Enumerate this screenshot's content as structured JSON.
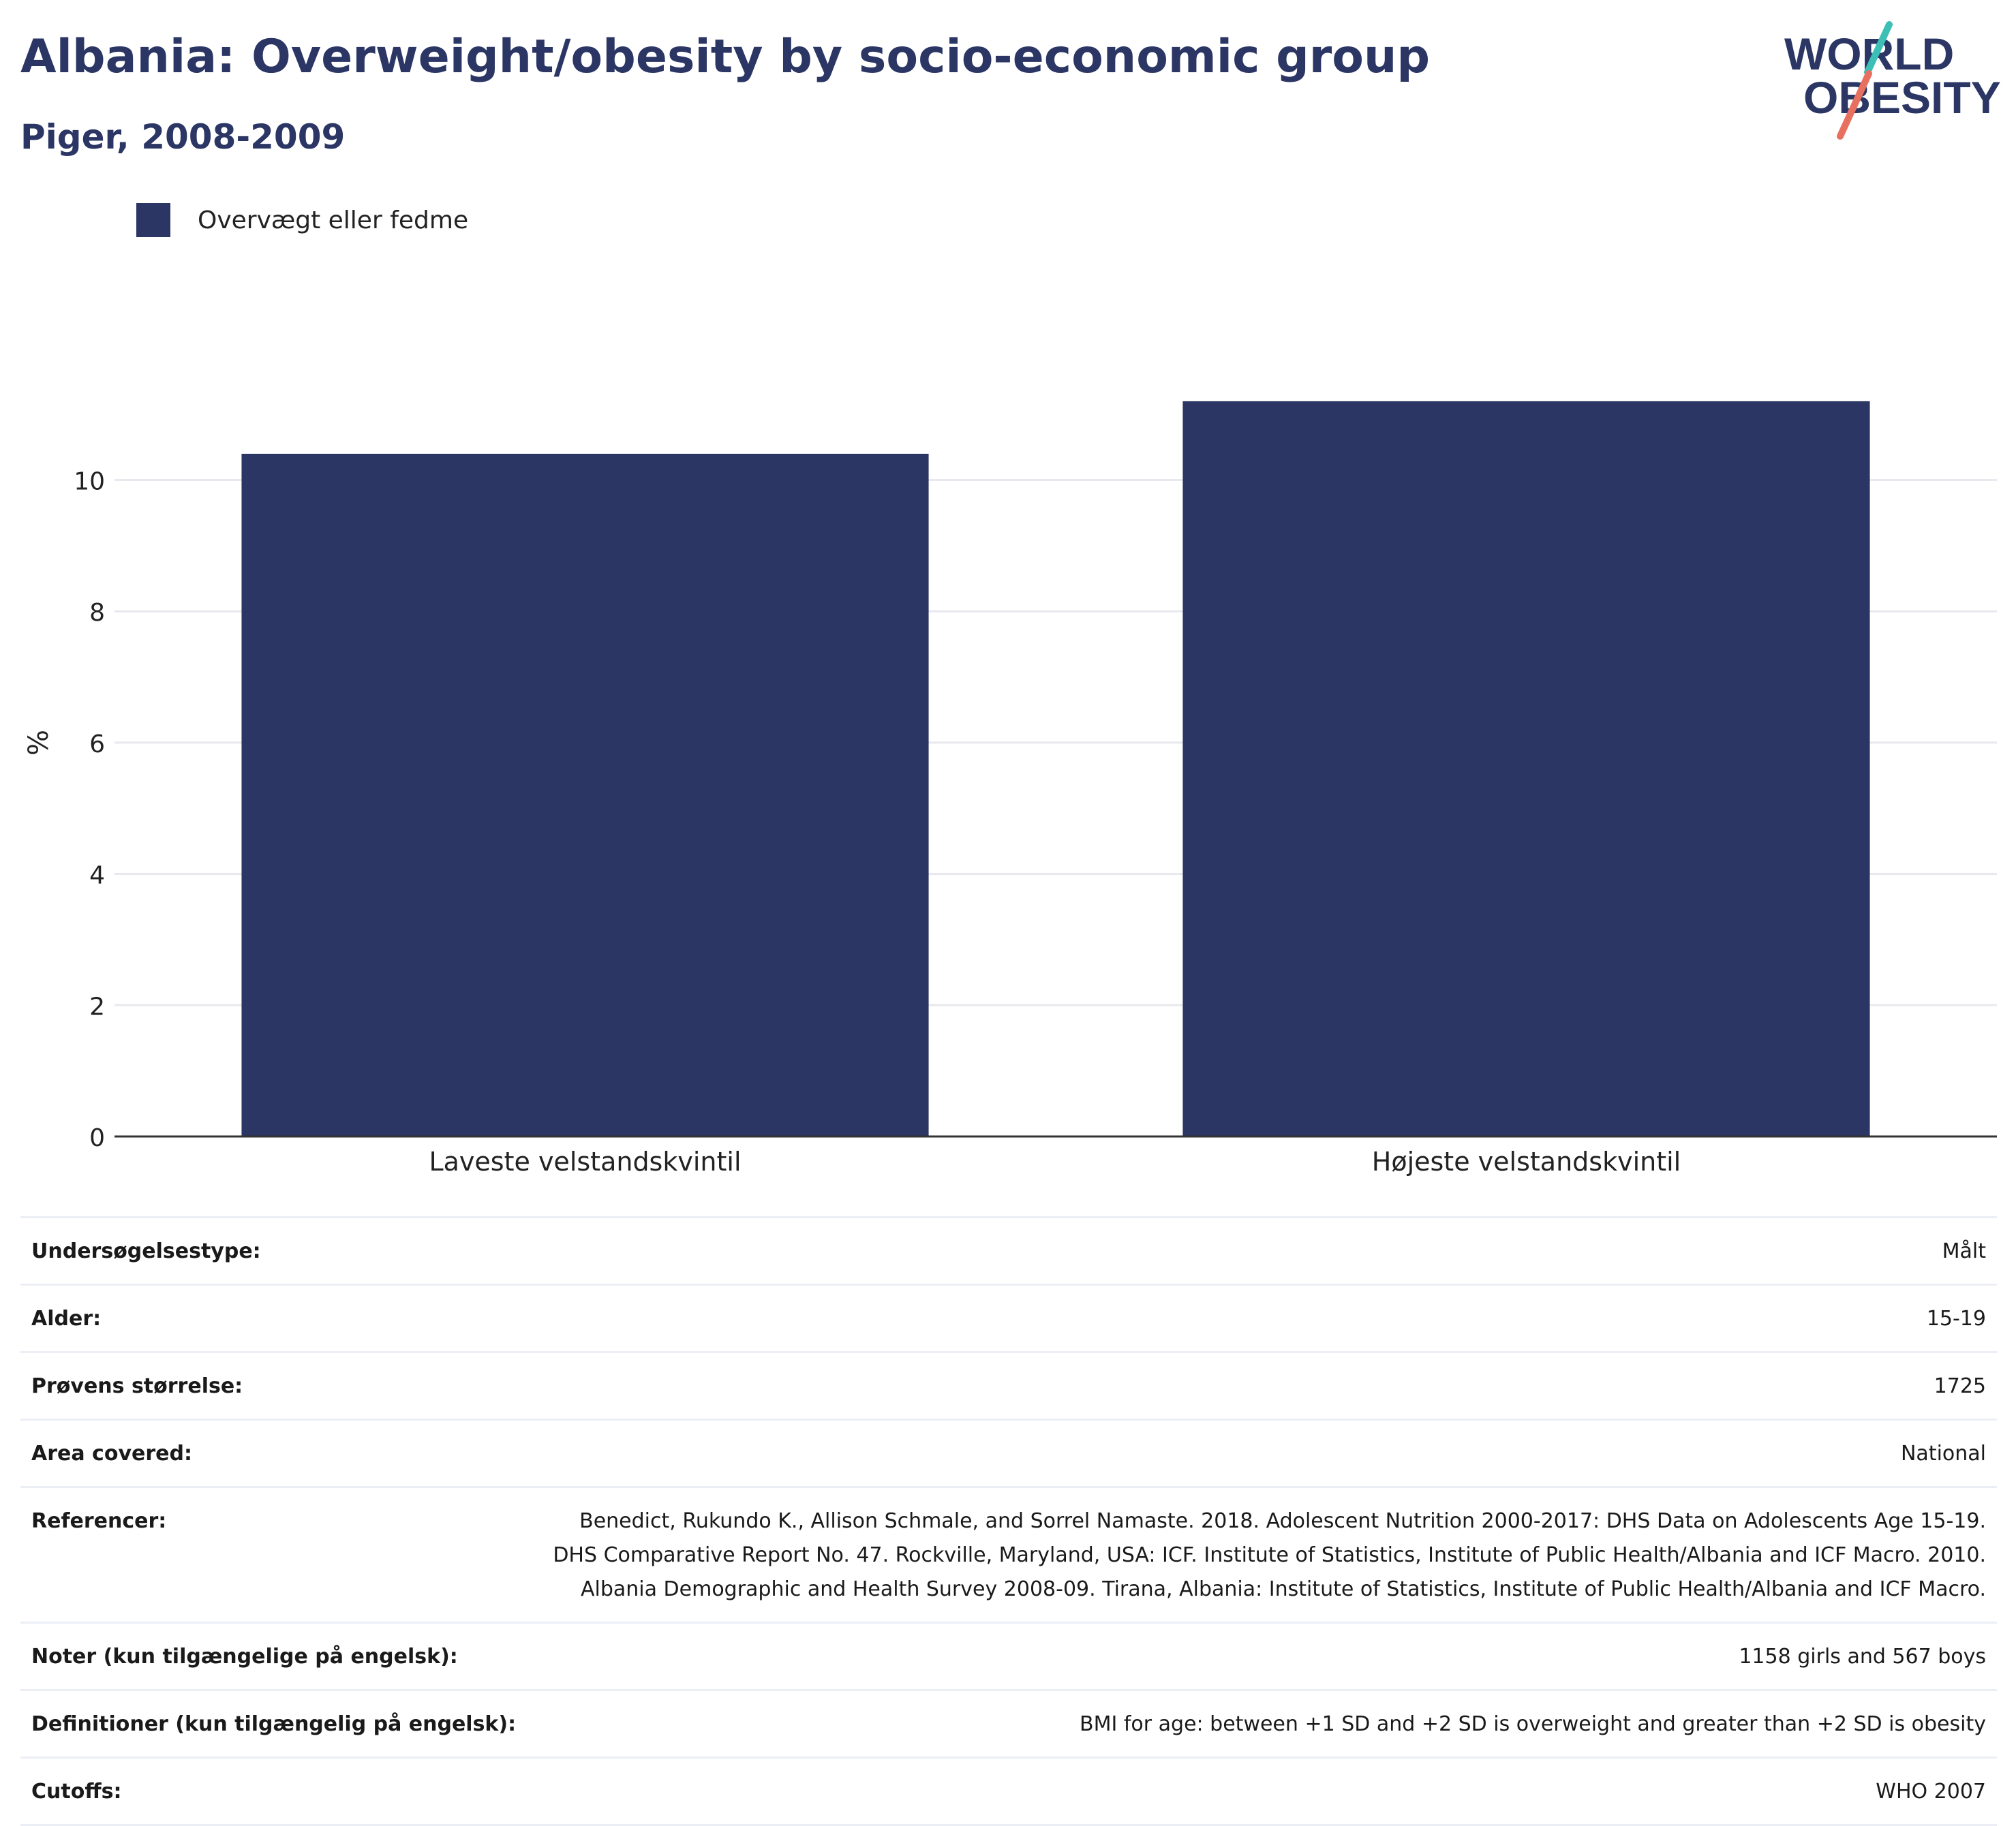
{
  "header": {
    "title": "Albania: Overweight/obesity by socio-economic group",
    "subtitle": "Piger, 2008-2009"
  },
  "logo": {
    "line1": "WORLD",
    "line2": "OBESITY"
  },
  "colors": {
    "brand_navy": "#2b3664",
    "bar": "#2b3664",
    "logo_teal": "#3bbfb6",
    "logo_coral": "#e8705f",
    "gridline": "#e8e8ee",
    "axis": "#333333"
  },
  "chart_data": {
    "type": "bar",
    "categories": [
      "Laveste velstandskvintil",
      "Højeste velstandskvintil"
    ],
    "series": [
      {
        "name": "Overvægt eller fedme",
        "values": [
          10.4,
          11.2
        ]
      }
    ],
    "ylabel": "%",
    "xlabel": "",
    "ylim": [
      0,
      11.5
    ],
    "yticks": [
      0,
      2,
      4,
      6,
      8,
      10
    ],
    "grid": true,
    "legend_placement": "top-left"
  },
  "info": [
    {
      "label": "Undersøgelsestype:",
      "value": "Målt"
    },
    {
      "label": "Alder:",
      "value": "15-19"
    },
    {
      "label": "Prøvens størrelse:",
      "value": "1725"
    },
    {
      "label": "Area covered:",
      "value": "National"
    },
    {
      "label": "Referencer:",
      "value": "Benedict, Rukundo K., Allison Schmale, and Sorrel Namaste. 2018. Adolescent Nutrition 2000-2017: DHS Data on Adolescents Age 15-19. DHS Comparative Report No. 47. Rockville, Maryland, USA: ICF. Institute of Statistics, Institute of Public Health/Albania and ICF Macro. 2010. Albania Demographic and Health Survey 2008-09. Tirana, Albania: Institute of Statistics, Institute of Public Health/Albania and ICF Macro."
    },
    {
      "label": "Noter (kun tilgængelige på engelsk):",
      "value": "1158 girls and 567 boys"
    },
    {
      "label": "Definitioner (kun tilgængelig på engelsk):",
      "value": "BMI for age: between +1 SD and +2 SD is overweight and greater than +2 SD is obesity"
    },
    {
      "label": "Cutoffs:",
      "value": "WHO 2007"
    }
  ]
}
